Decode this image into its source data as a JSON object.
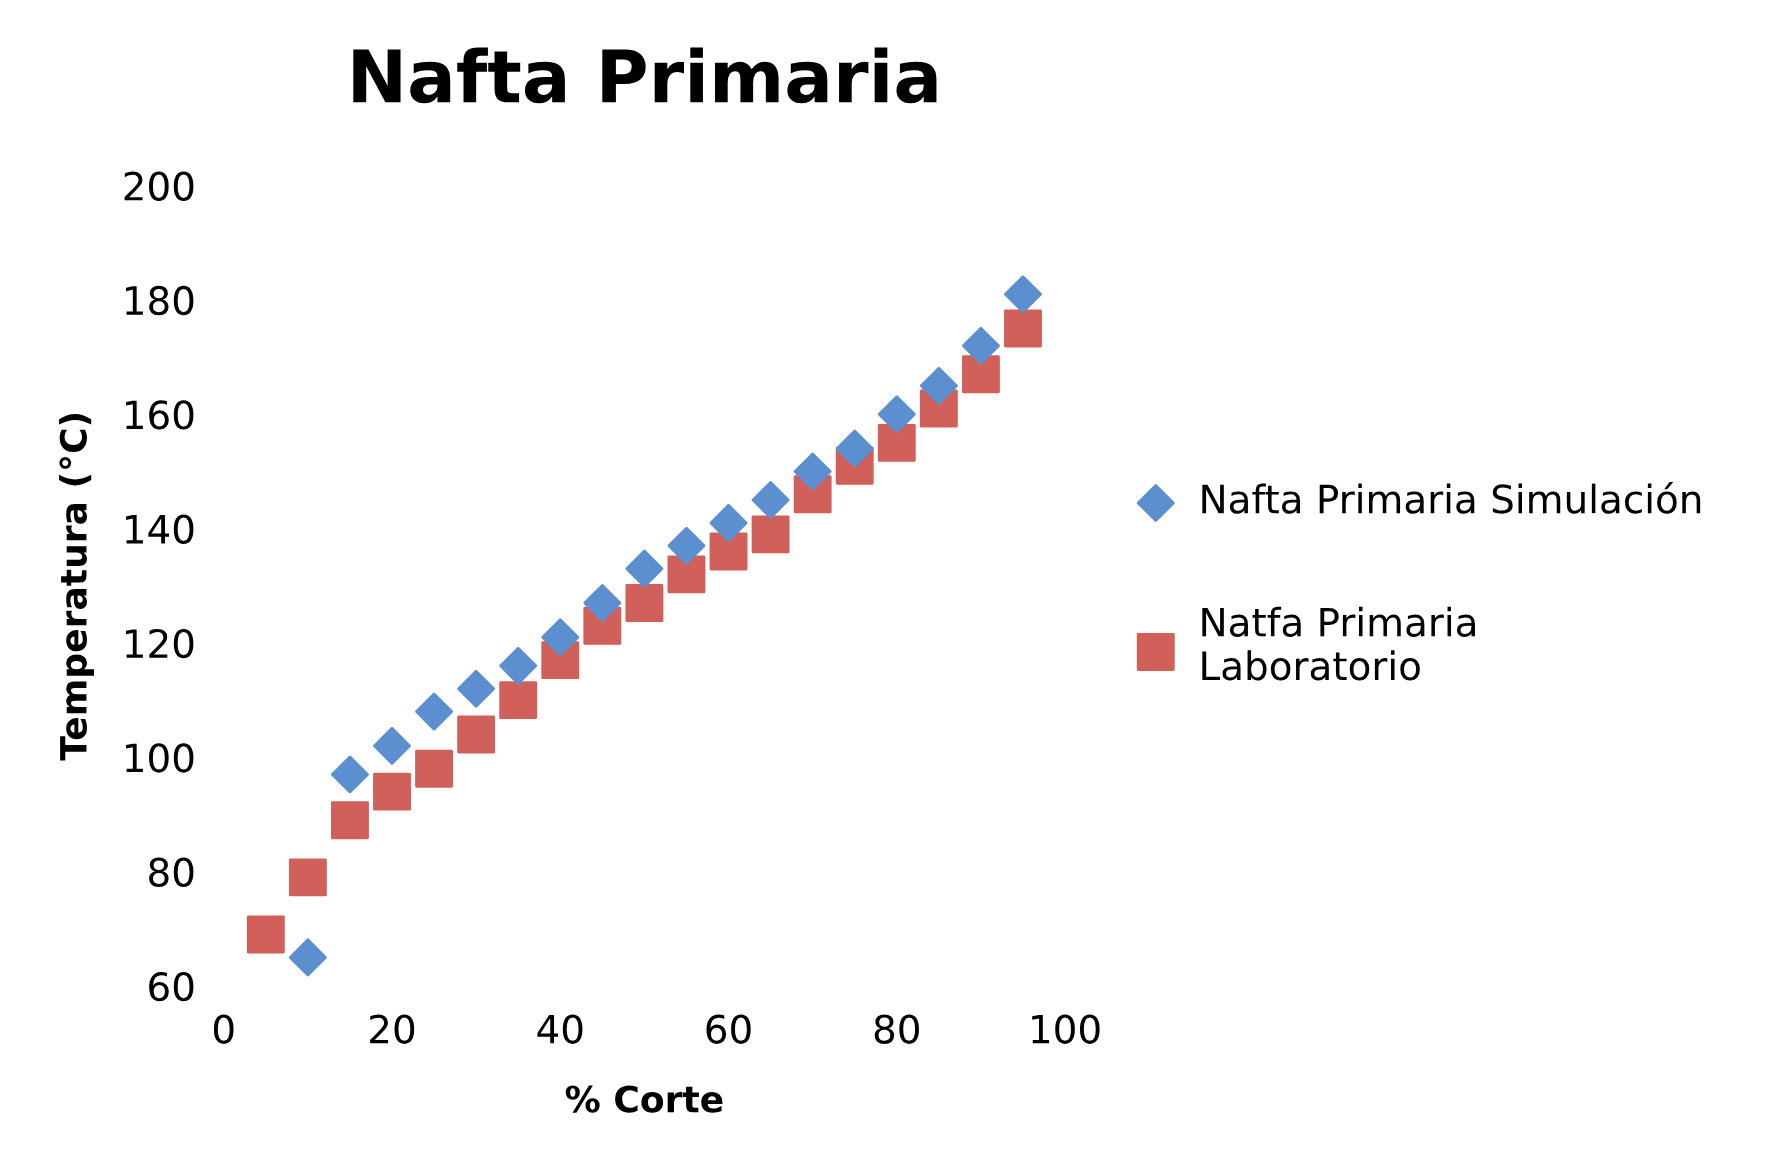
{
  "chart_data": {
    "type": "scatter",
    "title": "Nafta Primaria",
    "xlabel": "% Corte",
    "ylabel": "Temperatura (°C)",
    "xlim": [
      0,
      100
    ],
    "xticks": [
      0,
      20,
      40,
      60,
      80,
      100
    ],
    "ylim": [
      60,
      200
    ],
    "yticks": [
      60,
      80,
      100,
      120,
      140,
      160,
      180,
      200
    ],
    "grid": false,
    "legend": "right",
    "series": [
      {
        "name": "Nafta Primaria Simulación",
        "color": "#5b8fd0",
        "marker": "diamond",
        "x": [
          10,
          15,
          20,
          25,
          30,
          35,
          40,
          45,
          50,
          55,
          60,
          65,
          70,
          75,
          80,
          85,
          90,
          95
        ],
        "values": [
          65,
          97,
          102,
          108,
          112,
          116,
          121,
          127,
          133,
          137,
          141,
          145,
          150,
          154,
          160,
          165,
          172,
          181
        ]
      },
      {
        "name": "Natfa Primaria\nLaboratorio",
        "color": "#d2605a",
        "marker": "square",
        "x": [
          5,
          10,
          15,
          20,
          25,
          30,
          35,
          40,
          45,
          50,
          55,
          60,
          65,
          70,
          75,
          80,
          85,
          90,
          95
        ],
        "values": [
          69,
          79,
          89,
          94,
          98,
          104,
          110,
          117,
          123,
          127,
          132,
          136,
          139,
          146,
          151,
          155,
          161,
          167,
          175
        ]
      }
    ]
  }
}
